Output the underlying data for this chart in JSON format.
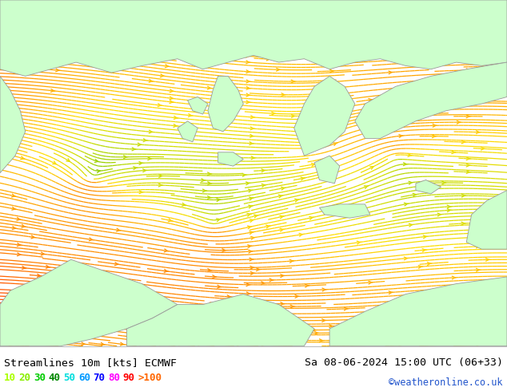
{
  "title_left": "Streamlines 10m [kts] ECMWF",
  "title_right": "Sa 08-06-2024 15:00 UTC (06+33)",
  "credit": "©weatheronline.co.uk",
  "legend_values": [
    "10",
    "20",
    "30",
    "40",
    "50",
    "60",
    "70",
    "80",
    "90",
    ">100"
  ],
  "legend_colors": [
    "#aaff00",
    "#88ee00",
    "#00cc00",
    "#008800",
    "#00dddd",
    "#0099ff",
    "#0000ff",
    "#ff00ff",
    "#ff0000",
    "#ff6600"
  ],
  "sea_color": "#aaffaa",
  "land_color": "#ccffcc",
  "border_color": "#999999",
  "figsize": [
    6.34,
    4.9
  ],
  "dpi": 100,
  "stream_colors": [
    "#ccff33",
    "#aaee00",
    "#ffdd00",
    "#ffaa00",
    "#ff7700"
  ],
  "stream_color_main": "#dddd00",
  "stream_color_green": "#88cc00",
  "stream_color_yellow": "#ffcc00"
}
